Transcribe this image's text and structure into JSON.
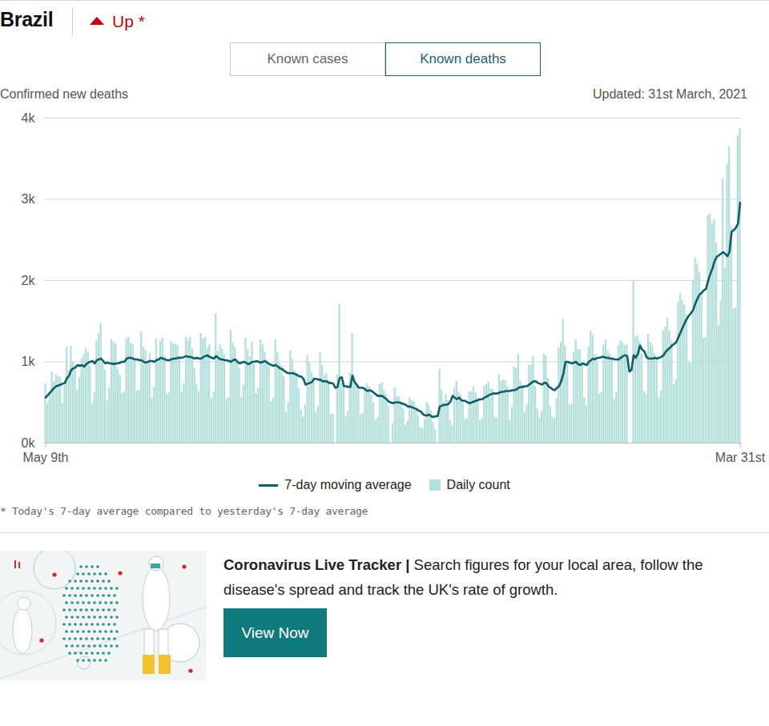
{
  "header": {
    "tabs": [
      "Known cases",
      "Known deaths"
    ],
    "active_tab": "Known deaths"
  },
  "chart_data": {
    "type": "bar",
    "title": "Brazil",
    "subtitle": "Up *",
    "y_label": "Confirmed new deaths",
    "annotation": "Updated: 31st March, 2021",
    "footnote": "* Today's 7-day average compared to yesterday's 7-day average",
    "categories": [
      "May 9th",
      null,
      null,
      null,
      null,
      null,
      null,
      null,
      null,
      null,
      null,
      null,
      null,
      null,
      null,
      null,
      null,
      null,
      null,
      null,
      null,
      null,
      null,
      null,
      null,
      null,
      null,
      null,
      null,
      null,
      null,
      null,
      null,
      null,
      null,
      null,
      null,
      null,
      null,
      null,
      null,
      null,
      null,
      null,
      null,
      null,
      null,
      null,
      null,
      null,
      null,
      null,
      null,
      null,
      null,
      null,
      null,
      null,
      null,
      null,
      null,
      null,
      null,
      null,
      null,
      null,
      null,
      null,
      null,
      null,
      null,
      null,
      null,
      null,
      null,
      null,
      null,
      null,
      null,
      null,
      null,
      null,
      null,
      null,
      null,
      null,
      null,
      null,
      null,
      null,
      null,
      null,
      null,
      null,
      null,
      null,
      null,
      null,
      null,
      null,
      null,
      null,
      null,
      null,
      null,
      null,
      null,
      null,
      null,
      null,
      null,
      null,
      null,
      null,
      null,
      null,
      null,
      null,
      null,
      null,
      null,
      null,
      null,
      null,
      null,
      null,
      null,
      null,
      null,
      null,
      null,
      null,
      null,
      null,
      null,
      null,
      null,
      null,
      null,
      null,
      null,
      null,
      null,
      null,
      null,
      null,
      null,
      null,
      null,
      null,
      null,
      null,
      null,
      null,
      null,
      null,
      null,
      null,
      null,
      null,
      null,
      null,
      null,
      null,
      null,
      null,
      null,
      null,
      null,
      null,
      null,
      null,
      null,
      null,
      null,
      null,
      null,
      null,
      null,
      null,
      null,
      null,
      null,
      null,
      null,
      null,
      null,
      null,
      null,
      null,
      null,
      null,
      null,
      null,
      null,
      null,
      null,
      null,
      null,
      null,
      null,
      null,
      null,
      null,
      null,
      null,
      null,
      null,
      null,
      null,
      null,
      null,
      null,
      null,
      null,
      null,
      null,
      null,
      null,
      null,
      null,
      null,
      null,
      null,
      null,
      null,
      null,
      null,
      null,
      null,
      null,
      null,
      null,
      null,
      null,
      null,
      null,
      null,
      null,
      null,
      null,
      null,
      null,
      null,
      null,
      null,
      null,
      null,
      null,
      null,
      null,
      null,
      null,
      null,
      null,
      null,
      null,
      null,
      null,
      null,
      null,
      null,
      null,
      null,
      null,
      null,
      null,
      null,
      null,
      null,
      null,
      null,
      null,
      null,
      null,
      null,
      null,
      null,
      null,
      null,
      null,
      null,
      null,
      null,
      null,
      null,
      null,
      null,
      null,
      null,
      null,
      null,
      null,
      null,
      null,
      null,
      null,
      null,
      null,
      null,
      null,
      null,
      null,
      null,
      null,
      null,
      null,
      null,
      null,
      null,
      null,
      null,
      null,
      null,
      null,
      null,
      null,
      null,
      null,
      null,
      null,
      null,
      null,
      null,
      null,
      null,
      "Mar 31st"
    ],
    "series": [
      {
        "name": "7-day moving average",
        "type": "line",
        "color": "#0f5d69",
        "values": [
          560,
          590,
          620,
          650,
          680,
          700,
          710,
          720,
          730,
          740,
          800,
          830,
          900,
          920,
          930,
          960,
          950,
          960,
          940,
          970,
          990,
          1000,
          1010,
          980,
          1020,
          1030,
          1040,
          1010,
          980,
          990,
          980,
          980,
          970,
          980,
          980,
          990,
          1000,
          1000,
          1040,
          1050,
          1050,
          1040,
          1030,
          1030,
          1020,
          1020,
          1000,
          990,
          1000,
          1010,
          1010,
          1000,
          1020,
          1030,
          1050,
          1040,
          1030,
          1020,
          1020,
          1030,
          1040,
          1040,
          1050,
          1050,
          1050,
          1060,
          1070,
          1060,
          1060,
          1050,
          1040,
          1050,
          1040,
          1040,
          1060,
          1070,
          1080,
          1060,
          1050,
          1040,
          1070,
          1050,
          1030,
          1030,
          1020,
          1020,
          1010,
          1000,
          1020,
          1030,
          1000,
          980,
          990,
          1000,
          990,
          970,
          980,
          1000,
          1000,
          1010,
          1000,
          990,
          1000,
          1010,
          990,
          970,
          960,
          950,
          960,
          940,
          920,
          910,
          890,
          870,
          860,
          860,
          860,
          850,
          840,
          820,
          820,
          790,
          720,
          730,
          740,
          750,
          790,
          790,
          780,
          780,
          760,
          760,
          760,
          740,
          740,
          730,
          680,
          690,
          800,
          810,
          700,
          700,
          690,
          690,
          830,
          750,
          720,
          680,
          680,
          680,
          660,
          640,
          650,
          640,
          620,
          600,
          580,
          580,
          580,
          560,
          540,
          510,
          500,
          490,
          500,
          500,
          500,
          490,
          480,
          470,
          450,
          450,
          440,
          430,
          420,
          400,
          390,
          360,
          340,
          340,
          350,
          330,
          320,
          330,
          330,
          450,
          460,
          470,
          470,
          480,
          510,
          580,
          560,
          540,
          560,
          530,
          520,
          520,
          500,
          490,
          500,
          510,
          520,
          530,
          540,
          540,
          560,
          570,
          590,
          600,
          610,
          610,
          610,
          620,
          630,
          630,
          640,
          640,
          640,
          650,
          650,
          660,
          680,
          690,
          690,
          700,
          700,
          720,
          740,
          760,
          760,
          740,
          730,
          720,
          740,
          740,
          700,
          680,
          660,
          650,
          680,
          700,
          760,
          850,
          1000,
          1000,
          990,
          980,
          990,
          1000,
          970,
          960,
          980,
          970,
          960,
          1000,
          1020,
          1040,
          1030,
          1050,
          1050,
          1060,
          1060,
          1050,
          1050,
          1040,
          1040,
          1030,
          1030,
          1030,
          1050,
          1070,
          1080,
          1070,
          880,
          900,
          1080,
          1050,
          1100,
          1200,
          1150,
          1130,
          1060,
          1040,
          1040,
          1040,
          1050,
          1040,
          1050,
          1060,
          1080,
          1120,
          1150,
          1170,
          1200,
          1220,
          1240,
          1300,
          1360,
          1420,
          1480,
          1530,
          1570,
          1600,
          1640,
          1720,
          1780,
          1830,
          1850,
          1880,
          1900,
          2000,
          2080,
          2150,
          2240,
          2290,
          2310,
          2330,
          2350,
          2330,
          2300,
          2350,
          2600,
          2620,
          2650,
          2700,
          2960
        ]
      },
      {
        "name": "Daily count",
        "type": "bar",
        "color": "#b4e0dc",
        "values": [
          730,
          480,
          620,
          880,
          750,
          840,
          820,
          810,
          480,
          740,
          1180,
          890,
          1190,
          1000,
          960,
          650,
          810,
          1040,
          1090,
          1160,
          1120,
          950,
          480,
          620,
          1260,
          1350,
          1470,
          1000,
          900,
          520,
          680,
          1270,
          1240,
          1220,
          910,
          840,
          610,
          630,
          1280,
          1300,
          1230,
          1210,
          1020,
          640,
          650,
          1370,
          1180,
          1140,
          990,
          1100,
          550,
          690,
          1280,
          1040,
          1250,
          1290,
          1070,
          600,
          620,
          1250,
          1220,
          1220,
          1200,
          1070,
          630,
          730,
          1300,
          1260,
          1300,
          1160,
          920,
          720,
          630,
          1350,
          1280,
          1300,
          1160,
          1210,
          550,
          630,
          1590,
          1130,
          1210,
          1160,
          1090,
          540,
          560,
          1390,
          1230,
          1180,
          1000,
          920,
          560,
          710,
          1290,
          1150,
          1060,
          1240,
          970,
          610,
          670,
          1270,
          1210,
          1120,
          1000,
          940,
          510,
          550,
          1270,
          1110,
          980,
          950,
          820,
          380,
          500,
          1130,
          1030,
          890,
          860,
          670,
          410,
          320,
          470,
          1080,
          980,
          870,
          810,
          380,
          450,
          1110,
          960,
          830,
          860,
          740,
          350,
          360,
          0,
          840,
          1700,
          730,
          690,
          330,
          390,
          860,
          1350,
          730,
          730,
          640,
          350,
          360,
          680,
          730,
          690,
          590,
          500,
          280,
          310,
          720,
          740,
          650,
          600,
          460,
          0,
          240,
          680,
          570,
          570,
          500,
          420,
          220,
          270,
          560,
          520,
          510,
          430,
          330,
          190,
          180,
          290,
          500,
          470,
          390,
          250,
          170,
          0,
          910,
          650,
          500,
          600,
          520,
          280,
          220,
          670,
          760,
          620,
          590,
          490,
          290,
          300,
          630,
          630,
          690,
          620,
          550,
          280,
          300,
          700,
          720,
          750,
          670,
          660,
          320,
          310,
          840,
          760,
          780,
          770,
          690,
          280,
          440,
          940,
          920,
          1090,
          760,
          710,
          380,
          470,
          960,
          960,
          1070,
          700,
          420,
          310,
          390,
          1100,
          1070,
          800,
          450,
          320,
          310,
          550,
          1170,
          1240,
          1520,
          1200,
          1000,
          470,
          480,
          1110,
          1270,
          1150,
          1150,
          970,
          550,
          450,
          1180,
          1380,
          1330,
          1090,
          1000,
          600,
          620,
          1210,
          1270,
          1140,
          1090,
          1050,
          540,
          620,
          1200,
          1260,
          1230,
          1200,
          1210,
          0,
          0,
          2000,
          1300,
          1320,
          1250,
          1100,
          630,
          600,
          1340,
          1240,
          1200,
          1100,
          1050,
          560,
          640,
          1380,
          1430,
          1540,
          1380,
          1250,
          720,
          780,
          1730,
          1840,
          1760,
          1700,
          1580,
          1000,
          980,
          2000,
          2280,
          2200,
          2100,
          1860,
          1290,
          1300,
          2800,
          2820,
          2700,
          2750,
          2460,
          1440,
          1750,
          3250,
          2150,
          3430,
          3650,
          2660,
          1650,
          1660,
          3780,
          3870
        ]
      }
    ],
    "ylim": [
      0,
      4000
    ],
    "yticks": [
      {
        "value": 0,
        "label": "0k"
      },
      {
        "value": 1000,
        "label": "1k"
      },
      {
        "value": 2000,
        "label": "2k"
      },
      {
        "value": 3000,
        "label": "3k"
      },
      {
        "value": 4000,
        "label": "4k"
      }
    ],
    "grid": true,
    "legend": "bottom"
  },
  "promo": {
    "title": "Coronavirus Live Tracker |",
    "text": "Search figures for your local area, follow the disease's spread and track the UK's rate of growth.",
    "button": "View Now"
  }
}
